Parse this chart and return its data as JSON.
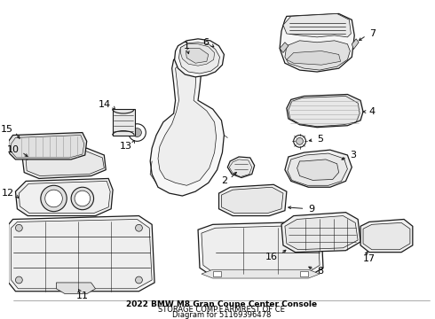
{
  "title": "2022 BMW M8 Gran Coupe Center Console",
  "subtitle": "STORAGE COMP.F.ARMREST OF CE",
  "part_number": "Diagram for 51169396478",
  "background_color": "#ffffff",
  "line_color": "#1a1a1a",
  "text_color": "#000000",
  "title_fontsize": 6.5,
  "label_fontsize": 8,
  "fig_width": 4.9,
  "fig_height": 3.6,
  "dpi": 100
}
